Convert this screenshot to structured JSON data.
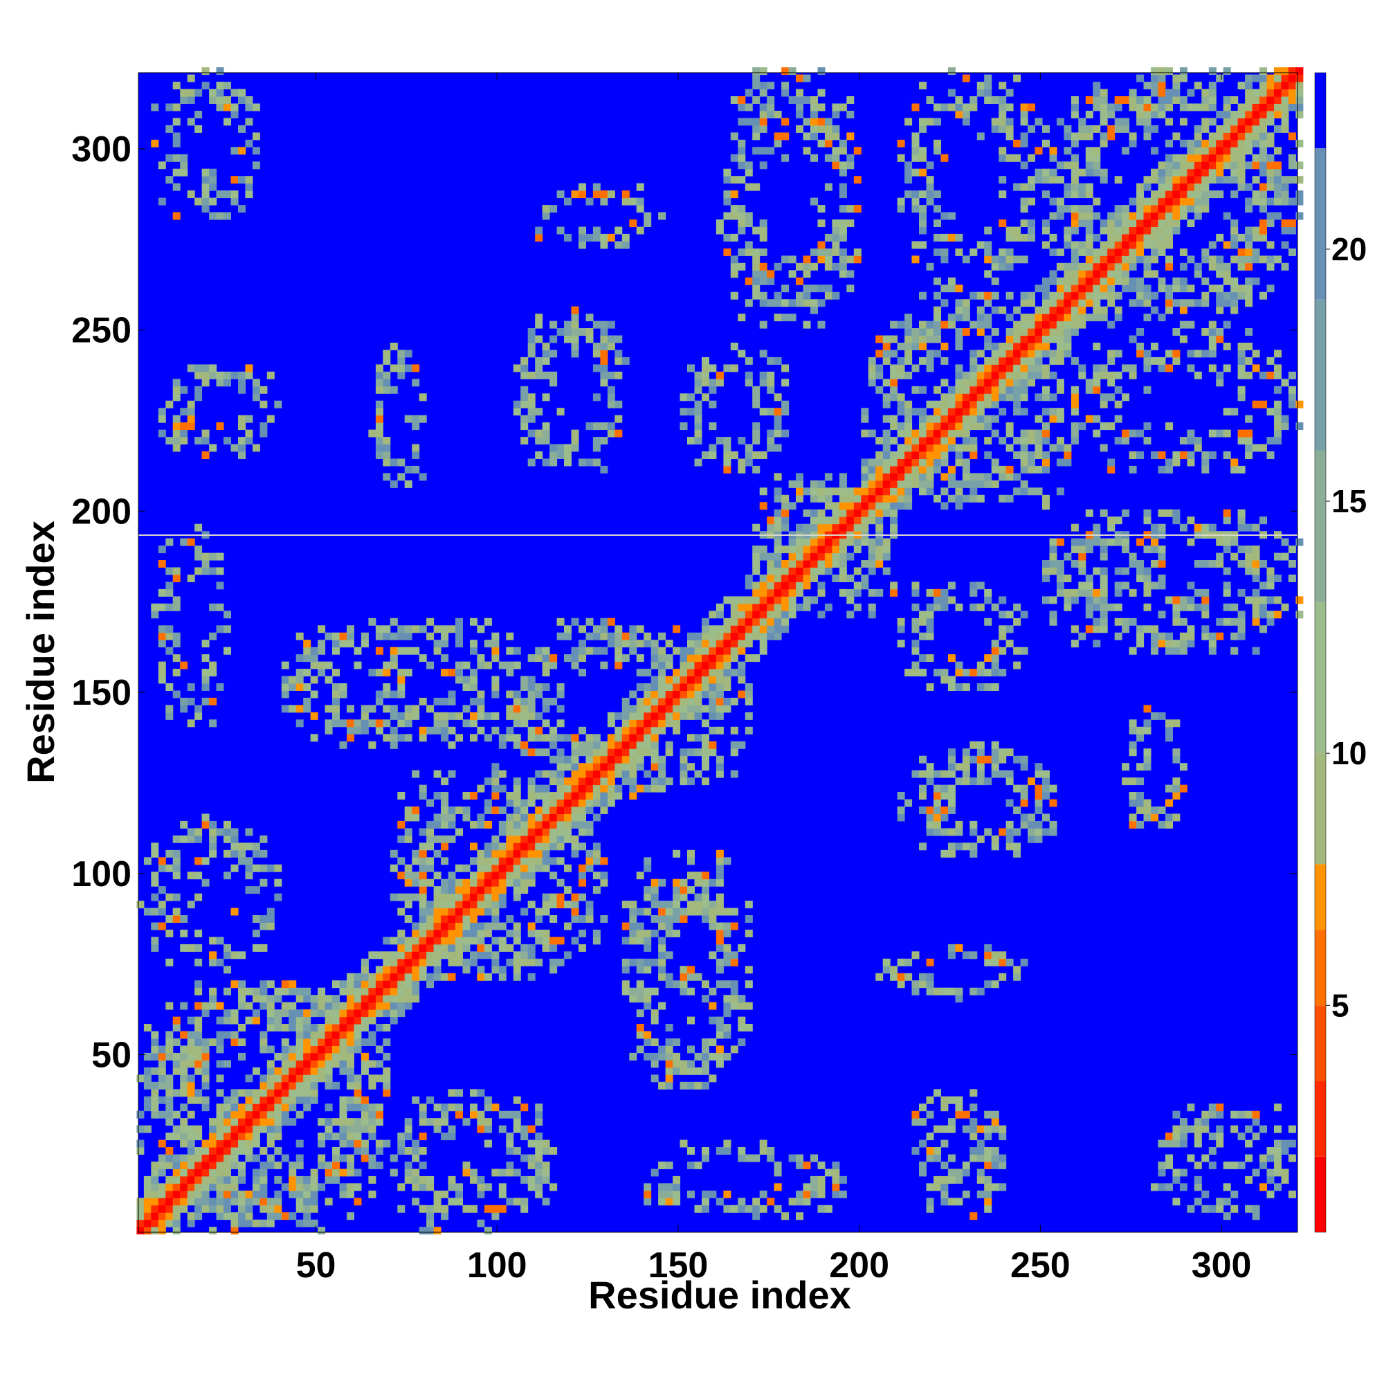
{
  "chart_data": {
    "type": "heatmap",
    "title": "",
    "xlabel": "Residue index",
    "ylabel": "Residue index",
    "xlim": [
      1,
      321
    ],
    "ylim": [
      1,
      321
    ],
    "x_ticks": [
      50,
      100,
      150,
      200,
      250,
      300
    ],
    "x_tick_labels": [
      "50",
      "100",
      "150",
      "200",
      "250",
      "300"
    ],
    "y_ticks": [
      50,
      100,
      150,
      200,
      250,
      300
    ],
    "y_tick_labels": [
      "50",
      "100",
      "150",
      "200",
      "250",
      "300"
    ],
    "grid": false,
    "legend": "none",
    "description_of_values": "Symmetric residue-residue distance map; low distances (red) along the diagonal, distances above the cutoff shown in blue.",
    "colorbar": {
      "range": [
        0.5,
        23.5
      ],
      "ticks": [
        5,
        10,
        15,
        20
      ],
      "tick_labels": [
        "5",
        "10",
        "15",
        "20"
      ],
      "bands": [
        {
          "from": 0.5,
          "to": 2.0,
          "color": "#ff0000"
        },
        {
          "from": 2.0,
          "to": 3.5,
          "color": "#ff2a00"
        },
        {
          "from": 3.5,
          "to": 5.0,
          "color": "#ff5000"
        },
        {
          "from": 5.0,
          "to": 6.5,
          "color": "#ff7000"
        },
        {
          "from": 6.5,
          "to": 7.8,
          "color": "#ff9400"
        },
        {
          "from": 7.8,
          "to": 10.0,
          "color": "#a3b87c"
        },
        {
          "from": 10.0,
          "to": 13.0,
          "color": "#9dbc8b"
        },
        {
          "from": 13.0,
          "to": 16.0,
          "color": "#8cae98"
        },
        {
          "from": 16.0,
          "to": 19.0,
          "color": "#78a0a8"
        },
        {
          "from": 19.0,
          "to": 22.0,
          "color": "#6690b4"
        },
        {
          "from": 22.0,
          "to": 23.5,
          "color": "#0000ff"
        }
      ]
    },
    "background_color": "#0000ff",
    "diagonal_color": "#ff0000",
    "contact_band_color": "#9dbc8b",
    "highlight_color": "#ff7000",
    "blocks": [
      {
        "x": [
          1,
          70
        ],
        "y": [
          1,
          70
        ],
        "level": 0.8
      },
      {
        "x": [
          70,
          130
        ],
        "y": [
          70,
          130
        ],
        "level": 0.7
      },
      {
        "x": [
          100,
          170
        ],
        "y": [
          120,
          170
        ],
        "level": 0.6
      },
      {
        "x": [
          170,
          210
        ],
        "y": [
          170,
          210
        ],
        "level": 0.7
      },
      {
        "x": [
          200,
          260
        ],
        "y": [
          200,
          260
        ],
        "level": 0.7
      },
      {
        "x": [
          250,
          321
        ],
        "y": [
          250,
          321
        ],
        "level": 0.7
      },
      {
        "x": [
          1,
          40
        ],
        "y": [
          70,
          115
        ],
        "level": 0.6
      },
      {
        "x": [
          70,
          115
        ],
        "y": [
          1,
          40
        ],
        "level": 0.6
      },
      {
        "x": [
          40,
          100
        ],
        "y": [
          135,
          170
        ],
        "level": 0.6
      },
      {
        "x": [
          135,
          170
        ],
        "y": [
          40,
          100
        ],
        "level": 0.6
      },
      {
        "x": [
          5,
          40
        ],
        "y": [
          215,
          240
        ],
        "level": 0.6
      },
      {
        "x": [
          215,
          240
        ],
        "y": [
          5,
          40
        ],
        "level": 0.6
      },
      {
        "x": [
          5,
          35
        ],
        "y": [
          280,
          321
        ],
        "level": 0.5
      },
      {
        "x": [
          280,
          321
        ],
        "y": [
          5,
          35
        ],
        "level": 0.5
      },
      {
        "x": [
          105,
          135
        ],
        "y": [
          210,
          255
        ],
        "level": 0.6
      },
      {
        "x": [
          210,
          255
        ],
        "y": [
          105,
          135
        ],
        "level": 0.6
      },
      {
        "x": [
          110,
          145
        ],
        "y": [
          272,
          290
        ],
        "level": 0.6
      },
      {
        "x": [
          272,
          290
        ],
        "y": [
          110,
          145
        ],
        "level": 0.6
      },
      {
        "x": [
          150,
          180
        ],
        "y": [
          210,
          245
        ],
        "level": 0.6
      },
      {
        "x": [
          210,
          245
        ],
        "y": [
          150,
          180
        ],
        "level": 0.6
      },
      {
        "x": [
          160,
          200
        ],
        "y": [
          250,
          321
        ],
        "level": 0.6
      },
      {
        "x": [
          250,
          321
        ],
        "y": [
          160,
          200
        ],
        "level": 0.6
      },
      {
        "x": [
          210,
          250
        ],
        "y": [
          260,
          321
        ],
        "level": 0.5
      },
      {
        "x": [
          260,
          321
        ],
        "y": [
          210,
          250
        ],
        "level": 0.5
      },
      {
        "x": [
          215,
          235
        ],
        "y": [
          15,
          40
        ],
        "level": 0.7
      },
      {
        "x": [
          205,
          245
        ],
        "y": [
          65,
          80
        ],
        "level": 0.6
      },
      {
        "x": [
          65,
          80
        ],
        "y": [
          205,
          245
        ],
        "level": 0.6
      },
      {
        "x": [
          215,
          255
        ],
        "y": [
          105,
          130
        ],
        "level": 0.6
      },
      {
        "x": [
          275,
          290
        ],
        "y": [
          110,
          145
        ],
        "level": 0.6
      },
      {
        "x": [
          270,
          321
        ],
        "y": [
          170,
          200
        ],
        "level": 0.6
      },
      {
        "x": [
          290,
          321
        ],
        "y": [
          15,
          35
        ],
        "level": 0.5
      },
      {
        "x": [
          140,
          195
        ],
        "y": [
          5,
          25
        ],
        "level": 0.5
      },
      {
        "x": [
          5,
          25
        ],
        "y": [
          140,
          195
        ],
        "level": 0.5
      },
      {
        "x": [
          85,
          115
        ],
        "y": [
          5,
          20
        ],
        "level": 0.5
      },
      {
        "x": [
          5,
          20
        ],
        "y": [
          85,
          115
        ],
        "level": 0.5
      },
      {
        "x": [
          135,
          170
        ],
        "y": [
          65,
          105
        ],
        "level": 0.6
      },
      {
        "x": [
          65,
          105
        ],
        "y": [
          135,
          170
        ],
        "level": 0.6
      }
    ]
  }
}
